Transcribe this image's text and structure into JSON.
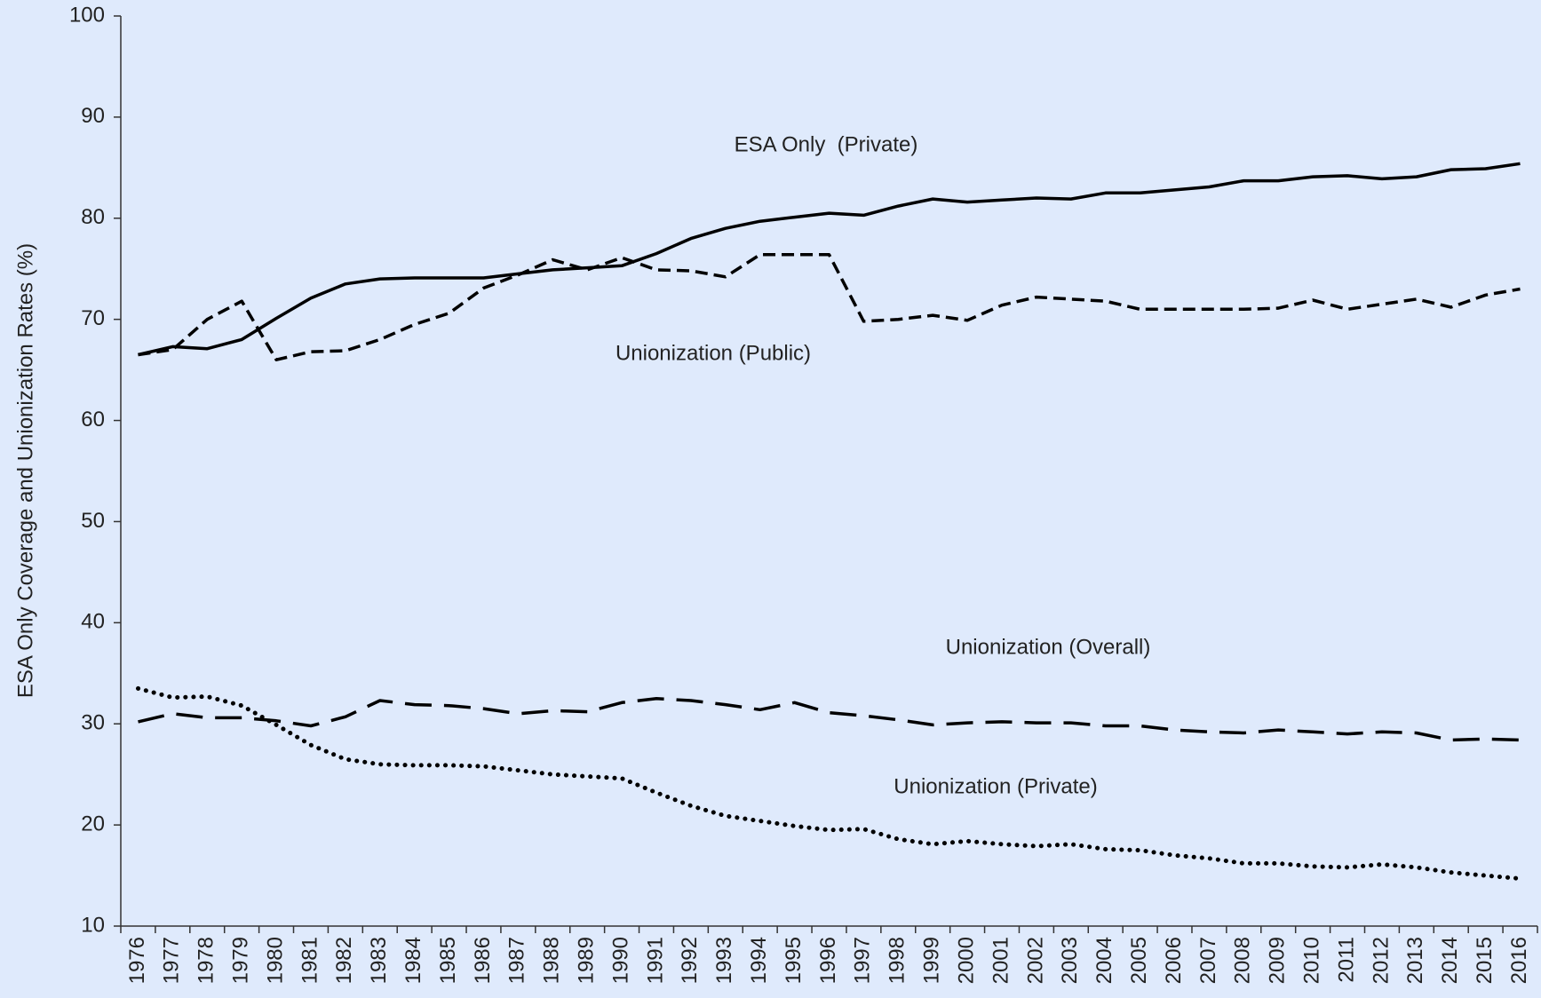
{
  "chart_data": {
    "type": "line",
    "y_label": "ESA Only Coverage and Unionization Rates (%)",
    "categories": [
      "1976",
      "1977",
      "1978",
      "1979",
      "1980",
      "1981",
      "1982",
      "1983",
      "1984",
      "1985",
      "1986",
      "1987",
      "1988",
      "1989",
      "1990",
      "1991",
      "1992",
      "1993",
      "1994",
      "1995",
      "1996",
      "1997",
      "1998",
      "1999",
      "2000",
      "2001",
      "2002",
      "2003",
      "2004",
      "2005",
      "2006",
      "2007",
      "2008",
      "2009",
      "2010",
      "2011",
      "2012",
      "2013",
      "2014",
      "2015",
      "2016"
    ],
    "series": [
      {
        "name": "ESA Only  (Private)",
        "color": "#000000",
        "dash": "solid",
        "values": [
          66.5,
          67.3,
          67.1,
          68,
          70.1,
          72.1,
          73.5,
          74,
          74.1,
          74.1,
          74.1,
          74.5,
          74.9,
          75.1,
          75.3,
          76.5,
          78,
          79,
          79.7,
          80.1,
          80.5,
          80.3,
          81.2,
          81.9,
          81.6,
          81.8,
          82,
          81.9,
          82.5,
          82.5,
          82.8,
          83.1,
          83.7,
          83.7,
          84.1,
          84.2,
          83.9,
          84.1,
          84.8,
          84.9,
          85.4
        ]
      },
      {
        "name": "Unionization (Public)",
        "color": "#000000",
        "dash": "dashed",
        "values": [
          66.5,
          67,
          70,
          71.8,
          66,
          66.8,
          66.9,
          68,
          69.5,
          70.6,
          73.1,
          74.4,
          75.9,
          74.9,
          76.1,
          74.9,
          74.8,
          74.2,
          76.4,
          76.4,
          76.4,
          69.8,
          70,
          70.4,
          69.9,
          71.4,
          72.2,
          72,
          71.8,
          71,
          71,
          71,
          71,
          71.1,
          71.9,
          71,
          71.5,
          72,
          71.2,
          72.4,
          73
        ]
      },
      {
        "name": "Unionization (Overall)",
        "color": "#000000",
        "dash": "longdash",
        "values": [
          30.2,
          31,
          30.6,
          30.6,
          30.3,
          29.8,
          30.7,
          32.3,
          31.9,
          31.8,
          31.5,
          31,
          31.3,
          31.2,
          32.1,
          32.5,
          32.3,
          31.9,
          31.4,
          32.1,
          31.1,
          30.8,
          30.4,
          29.9,
          30.1,
          30.2,
          30.1,
          30.1,
          29.8,
          29.8,
          29.4,
          29.2,
          29.1,
          29.4,
          29.2,
          29,
          29.2,
          29.1,
          28.4,
          28.5,
          28.4
        ]
      },
      {
        "name": "Unionization (Private)",
        "color": "#000000",
        "dash": "dotted",
        "values": [
          33.5,
          32.6,
          32.7,
          31.8,
          29.9,
          27.9,
          26.5,
          26,
          25.9,
          25.9,
          25.8,
          25.4,
          25,
          24.8,
          24.6,
          23.2,
          21.9,
          20.9,
          20.4,
          19.9,
          19.5,
          19.6,
          18.6,
          18.1,
          18.4,
          18.1,
          17.9,
          18.1,
          17.6,
          17.5,
          17,
          16.7,
          16.2,
          16.2,
          15.9,
          15.8,
          16.1,
          15.8,
          15.3,
          15,
          14.7
        ]
      }
    ],
    "ylim": [
      10,
      100
    ],
    "yticks": [
      10,
      20,
      30,
      40,
      50,
      60,
      70,
      80,
      90,
      100
    ],
    "grid": false
  }
}
